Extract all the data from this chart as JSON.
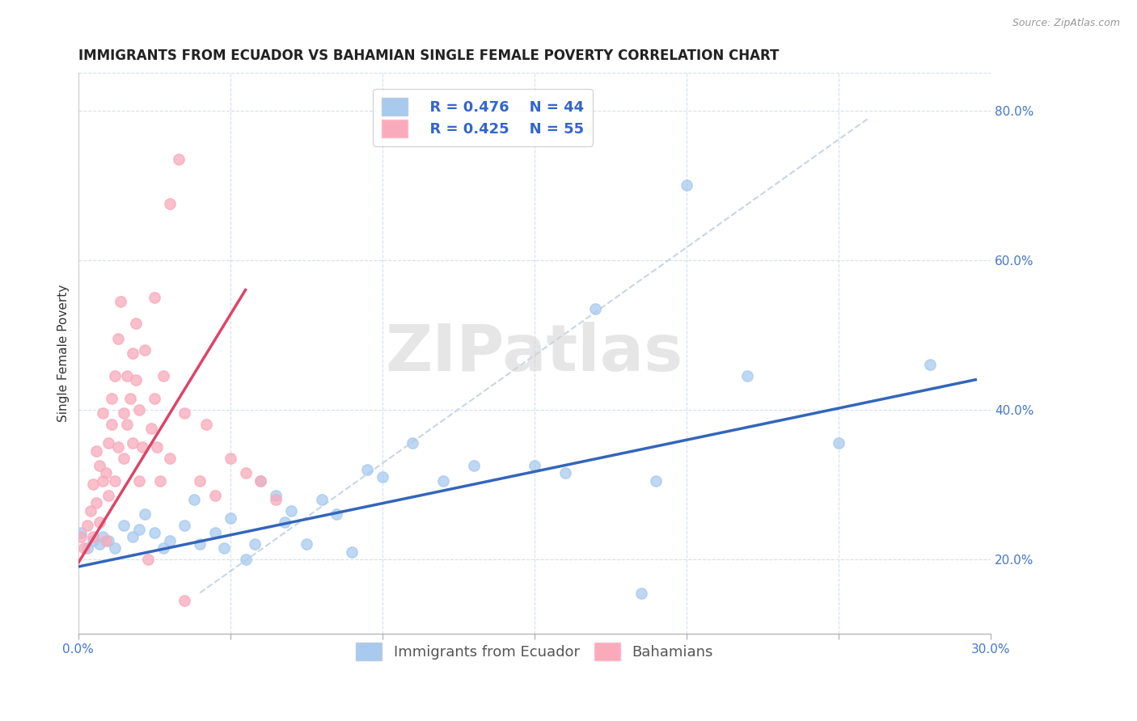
{
  "title": "IMMIGRANTS FROM ECUADOR VS BAHAMIAN SINGLE FEMALE POVERTY CORRELATION CHART",
  "source": "Source: ZipAtlas.com",
  "ylabel": "Single Female Poverty",
  "watermark": "ZIPatlas",
  "legend_label_blue": "Immigrants from Ecuador",
  "legend_label_pink": "Bahamians",
  "legend_r_blue": "R = 0.476",
  "legend_n_blue": "N = 44",
  "legend_r_pink": "R = 0.425",
  "legend_n_pink": "N = 55",
  "xlim": [
    0.0,
    0.3
  ],
  "ylim": [
    0.1,
    0.85
  ],
  "x_ticks": [
    0.0,
    0.05,
    0.1,
    0.15,
    0.2,
    0.25,
    0.3
  ],
  "x_tick_labels": [
    "0.0%",
    "",
    "",
    "",
    "",
    "",
    "30.0%"
  ],
  "y_ticks": [
    0.2,
    0.4,
    0.6,
    0.8
  ],
  "y_tick_labels": [
    "20.0%",
    "40.0%",
    "60.0%",
    "80.0%"
  ],
  "color_blue": "#A8CAEE",
  "color_pink": "#F9AABB",
  "line_color_blue": "#3366BB",
  "line_color_pink": "#DD4466",
  "blue_scatter": [
    [
      0.001,
      0.235
    ],
    [
      0.003,
      0.215
    ],
    [
      0.005,
      0.225
    ],
    [
      0.007,
      0.22
    ],
    [
      0.008,
      0.23
    ],
    [
      0.01,
      0.225
    ],
    [
      0.012,
      0.215
    ],
    [
      0.015,
      0.245
    ],
    [
      0.018,
      0.23
    ],
    [
      0.02,
      0.24
    ],
    [
      0.022,
      0.26
    ],
    [
      0.025,
      0.235
    ],
    [
      0.028,
      0.215
    ],
    [
      0.03,
      0.225
    ],
    [
      0.035,
      0.245
    ],
    [
      0.038,
      0.28
    ],
    [
      0.04,
      0.22
    ],
    [
      0.045,
      0.235
    ],
    [
      0.048,
      0.215
    ],
    [
      0.05,
      0.255
    ],
    [
      0.055,
      0.2
    ],
    [
      0.058,
      0.22
    ],
    [
      0.06,
      0.305
    ],
    [
      0.065,
      0.285
    ],
    [
      0.068,
      0.25
    ],
    [
      0.07,
      0.265
    ],
    [
      0.075,
      0.22
    ],
    [
      0.08,
      0.28
    ],
    [
      0.085,
      0.26
    ],
    [
      0.09,
      0.21
    ],
    [
      0.095,
      0.32
    ],
    [
      0.1,
      0.31
    ],
    [
      0.11,
      0.355
    ],
    [
      0.12,
      0.305
    ],
    [
      0.13,
      0.325
    ],
    [
      0.15,
      0.325
    ],
    [
      0.16,
      0.315
    ],
    [
      0.17,
      0.535
    ],
    [
      0.185,
      0.155
    ],
    [
      0.19,
      0.305
    ],
    [
      0.2,
      0.7
    ],
    [
      0.22,
      0.445
    ],
    [
      0.25,
      0.355
    ],
    [
      0.28,
      0.46
    ]
  ],
  "pink_scatter": [
    [
      0.001,
      0.23
    ],
    [
      0.002,
      0.215
    ],
    [
      0.003,
      0.245
    ],
    [
      0.004,
      0.265
    ],
    [
      0.005,
      0.23
    ],
    [
      0.005,
      0.3
    ],
    [
      0.006,
      0.275
    ],
    [
      0.006,
      0.345
    ],
    [
      0.007,
      0.325
    ],
    [
      0.007,
      0.25
    ],
    [
      0.008,
      0.395
    ],
    [
      0.008,
      0.305
    ],
    [
      0.009,
      0.315
    ],
    [
      0.009,
      0.225
    ],
    [
      0.01,
      0.355
    ],
    [
      0.01,
      0.285
    ],
    [
      0.011,
      0.415
    ],
    [
      0.011,
      0.38
    ],
    [
      0.012,
      0.445
    ],
    [
      0.012,
      0.305
    ],
    [
      0.013,
      0.35
    ],
    [
      0.013,
      0.495
    ],
    [
      0.014,
      0.545
    ],
    [
      0.015,
      0.335
    ],
    [
      0.015,
      0.395
    ],
    [
      0.016,
      0.445
    ],
    [
      0.016,
      0.38
    ],
    [
      0.017,
      0.415
    ],
    [
      0.018,
      0.475
    ],
    [
      0.018,
      0.355
    ],
    [
      0.019,
      0.515
    ],
    [
      0.019,
      0.44
    ],
    [
      0.02,
      0.4
    ],
    [
      0.02,
      0.305
    ],
    [
      0.021,
      0.35
    ],
    [
      0.022,
      0.48
    ],
    [
      0.023,
      0.2
    ],
    [
      0.024,
      0.375
    ],
    [
      0.025,
      0.415
    ],
    [
      0.025,
      0.55
    ],
    [
      0.026,
      0.35
    ],
    [
      0.027,
      0.305
    ],
    [
      0.028,
      0.445
    ],
    [
      0.03,
      0.675
    ],
    [
      0.03,
      0.335
    ],
    [
      0.033,
      0.735
    ],
    [
      0.035,
      0.395
    ],
    [
      0.035,
      0.145
    ],
    [
      0.04,
      0.305
    ],
    [
      0.042,
      0.38
    ],
    [
      0.045,
      0.285
    ],
    [
      0.05,
      0.335
    ],
    [
      0.055,
      0.315
    ],
    [
      0.06,
      0.305
    ],
    [
      0.065,
      0.28
    ]
  ],
  "blue_line_x": [
    0.0,
    0.295
  ],
  "blue_line_y": [
    0.19,
    0.44
  ],
  "pink_line_x": [
    0.0,
    0.055
  ],
  "pink_line_y": [
    0.195,
    0.56
  ],
  "dashed_line_x": [
    0.04,
    0.26
  ],
  "dashed_line_y": [
    0.155,
    0.79
  ],
  "title_fontsize": 12,
  "axis_label_fontsize": 11,
  "tick_fontsize": 11,
  "legend_fontsize": 13
}
